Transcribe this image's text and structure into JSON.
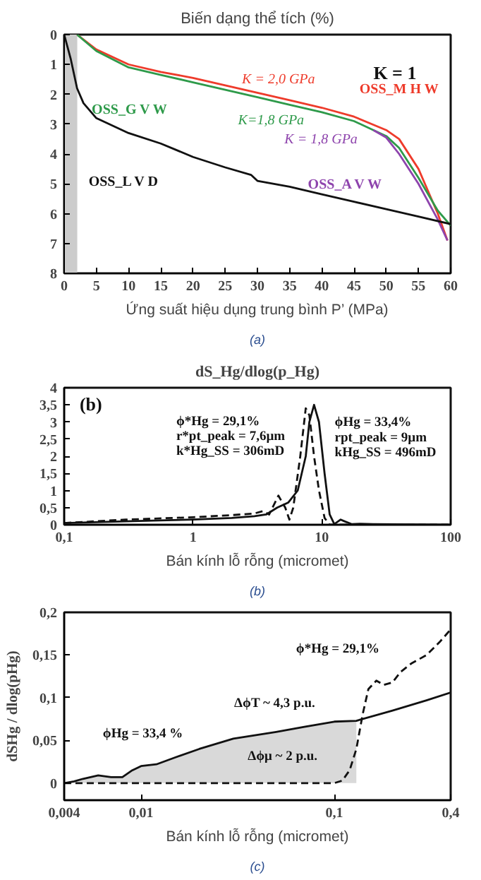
{
  "chart_data": [
    {
      "type": "line",
      "title": "Biến dạng thể tích (%)",
      "xlabel": "Ứng suất hiệu dụng trung bình P’ (MPa)",
      "xlim": [
        0,
        60
      ],
      "ylim": [
        8,
        0
      ],
      "xticks": [
        0,
        5,
        10,
        15,
        20,
        25,
        30,
        35,
        40,
        45,
        50,
        55,
        60
      ],
      "yticks": [
        0,
        1,
        2,
        3,
        4,
        5,
        6,
        7,
        8
      ],
      "grid": false,
      "series": [
        {
          "name": "OSS_M H W",
          "color": "#ee3b2b",
          "x": [
            2,
            5,
            10,
            15,
            20,
            25,
            30,
            35,
            40,
            45,
            50,
            52,
            55,
            58,
            59.5
          ],
          "values": [
            0,
            0.5,
            1.0,
            1.25,
            1.45,
            1.7,
            1.95,
            2.2,
            2.45,
            2.75,
            3.2,
            3.5,
            4.5,
            6.0,
            6.9
          ]
        },
        {
          "name": "OSS_G V W",
          "color": "#2e9a4a",
          "x": [
            2,
            5,
            10,
            15,
            20,
            25,
            30,
            35,
            40,
            45,
            50,
            52,
            55,
            58,
            60
          ],
          "values": [
            0,
            0.55,
            1.1,
            1.35,
            1.6,
            1.85,
            2.1,
            2.35,
            2.6,
            2.9,
            3.4,
            3.8,
            4.8,
            5.9,
            6.4
          ]
        },
        {
          "name": "OSS_A V W",
          "color": "#8e44ad",
          "x": [
            48,
            50,
            52,
            55,
            58,
            59.5
          ],
          "values": [
            3.2,
            3.45,
            4.0,
            5.0,
            6.2,
            6.9
          ]
        },
        {
          "name": "OSS_L V D",
          "color": "#111111",
          "x": [
            0,
            1,
            2,
            3,
            5,
            10,
            15,
            20,
            25,
            29,
            30,
            35,
            40,
            45,
            50,
            55,
            60
          ],
          "values": [
            0,
            0.8,
            1.8,
            2.3,
            2.8,
            3.3,
            3.65,
            4.1,
            4.45,
            4.7,
            4.9,
            5.1,
            5.35,
            5.6,
            5.85,
            6.1,
            6.35
          ]
        }
      ],
      "bands": [
        {
          "axis": "x",
          "from": 0,
          "to": 2,
          "color": "#cccccc"
        }
      ],
      "annotations": [
        "K = 2,0 GPa",
        "K=1,8 GPa",
        "K = 1,8 GPa",
        "K = 1",
        "(a)"
      ]
    },
    {
      "type": "line",
      "title": "dS_Hg/dlog(p_Hg)",
      "xlabel": "Bán kính lỗ rỗng (micromet)",
      "log": "x",
      "xlim": [
        0.1,
        100
      ],
      "ylim": [
        0,
        4
      ],
      "xticks": [
        {
          "value": 0.1,
          "label": "0,1"
        },
        1,
        10,
        100
      ],
      "yticks": [
        0,
        {
          "value": 0.5,
          "label": "0,5"
        },
        1,
        {
          "value": 1.5,
          "label": "1,5"
        },
        2,
        {
          "value": 2.5,
          "label": "2,5"
        },
        3,
        {
          "value": 3.5,
          "label": "3,5"
        },
        4
      ],
      "grid": false,
      "series": [
        {
          "color": "#111111",
          "line_style": "solid",
          "x": [
            0.1,
            0.3,
            1,
            2,
            3,
            3.7,
            4.5,
            5.5,
            6.5,
            7.5,
            8,
            8.7,
            9.5,
            10.5,
            11.5,
            12.5,
            14,
            15,
            17,
            20,
            25,
            40,
            100
          ],
          "values": [
            0.05,
            0.1,
            0.15,
            0.2,
            0.25,
            0.3,
            0.5,
            0.65,
            1.0,
            2.0,
            3.0,
            3.5,
            3.0,
            1.5,
            0.3,
            0.02,
            0.15,
            0.1,
            0.02,
            0.03,
            0.02,
            0.01,
            0
          ]
        },
        {
          "color": "#111111",
          "line_style": "dashed",
          "x": [
            0.1,
            0.3,
            1,
            2,
            3,
            3.5,
            3.9,
            4.6,
            5.2,
            5.6,
            6,
            6.8,
            7.5,
            8,
            8.7,
            9.5,
            10.5,
            11.5,
            100
          ],
          "values": [
            0.05,
            0.15,
            0.22,
            0.28,
            0.33,
            0.4,
            0.3,
            0.85,
            0.5,
            0.15,
            0.5,
            2.0,
            3.4,
            3.2,
            2.0,
            1.0,
            0.2,
            0,
            0
          ]
        }
      ],
      "annotations": [
        "(b)",
        "ϕ*Hg = 29,1%",
        "r*pt_peak = 7,6µm",
        "k*Hg_SS = 306mD",
        "ϕHg = 33,4%",
        "rpt_peak = 9µm",
        "kHg_SS = 496mD",
        "(b)"
      ]
    },
    {
      "type": "line",
      "xlabel": "Bán kính lỗ rỗng (micromet)",
      "ylabel": "dSHg / dlog(pHg)",
      "log": "x",
      "xlim": [
        0.004,
        0.4
      ],
      "ylim": [
        -0.02,
        0.2
      ],
      "xticks": [
        {
          "value": 0.004,
          "label": "0,004"
        },
        {
          "value": 0.01,
          "label": "0,01"
        },
        {
          "value": 0.1,
          "label": "0,1"
        },
        {
          "value": 0.4,
          "label": "0,4"
        }
      ],
      "yticks": [
        0,
        {
          "value": 0.05,
          "label": "0,05"
        },
        {
          "value": 0.1,
          "label": "0,1"
        },
        {
          "value": 0.15,
          "label": "0,15"
        },
        {
          "value": 0.2,
          "label": "0,2"
        }
      ],
      "grid": false,
      "series": [
        {
          "type": "area",
          "color": "#d9d9d9",
          "x": [
            0.004,
            0.005,
            0.006,
            0.007,
            0.008,
            0.009,
            0.01,
            0.012,
            0.015,
            0.02,
            0.03,
            0.05,
            0.07,
            0.1,
            0.13
          ],
          "values": [
            0,
            0.005,
            0.009,
            0.007,
            0.007,
            0.015,
            0.02,
            0.022,
            0.03,
            0.04,
            0.052,
            0.06,
            0.066,
            0.072,
            0.073
          ]
        },
        {
          "color": "#111111",
          "line_style": "solid",
          "x": [
            0.004,
            0.0045,
            0.005,
            0.006,
            0.007,
            0.008,
            0.009,
            0.01,
            0.012,
            0.015,
            0.02,
            0.03,
            0.05,
            0.07,
            0.1,
            0.13,
            0.2,
            0.3,
            0.4
          ],
          "values": [
            0,
            0.002,
            0.005,
            0.009,
            0.007,
            0.007,
            0.015,
            0.02,
            0.022,
            0.03,
            0.04,
            0.052,
            0.06,
            0.066,
            0.072,
            0.073,
            0.085,
            0.097,
            0.106
          ]
        },
        {
          "color": "#111111",
          "line_style": "dashed",
          "x": [
            0.004,
            0.01,
            0.05,
            0.1,
            0.11,
            0.12,
            0.13,
            0.14,
            0.15,
            0.165,
            0.18,
            0.2,
            0.22,
            0.25,
            0.3,
            0.35,
            0.4
          ],
          "values": [
            0,
            0,
            0,
            0,
            0.003,
            0.015,
            0.04,
            0.08,
            0.11,
            0.12,
            0.115,
            0.118,
            0.13,
            0.14,
            0.15,
            0.165,
            0.18
          ]
        }
      ],
      "annotations": [
        "ϕ*Hg = 29,1%",
        "ΔϕT ~ 4,3 p.u.",
        "ϕHg = 33,4 %",
        "Δϕμ ~ 2 p.u.",
        "(c)"
      ]
    }
  ]
}
